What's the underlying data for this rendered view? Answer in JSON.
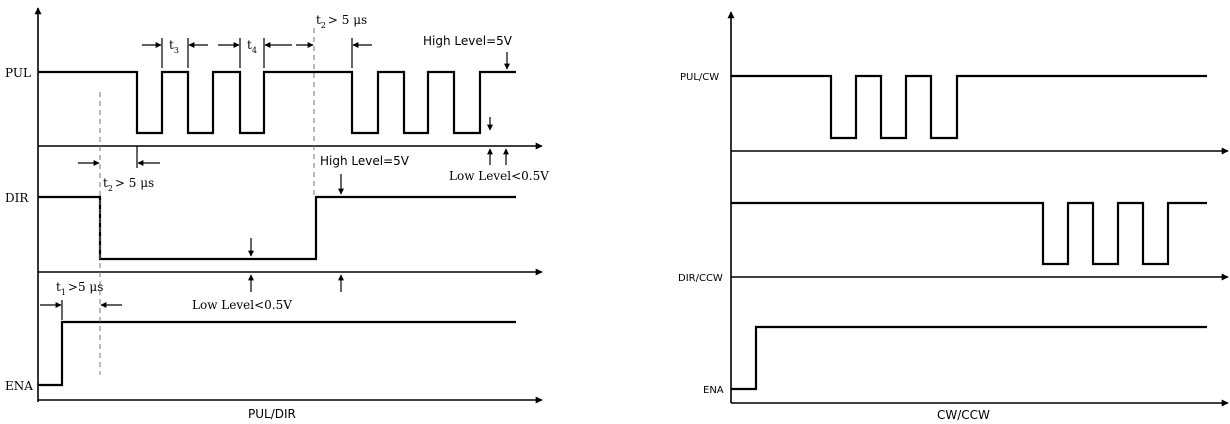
{
  "left": {
    "signals": {
      "pul": "PUL",
      "dir": "DIR",
      "ena": "ENA"
    },
    "caption": "PUL/DIR",
    "t3": {
      "t": "t",
      "sub": "3"
    },
    "t4": {
      "t": "t",
      "sub": "4"
    },
    "t2_top": {
      "t": "t",
      "sub": "2",
      "rest": "> 5 μs"
    },
    "t2_mid": {
      "t": "t",
      "sub": "2",
      "rest": "> 5 μs"
    },
    "t1": {
      "t": "t",
      "sub": "1",
      "rest": ">5 μs"
    },
    "high_level_top": "High Level=5V",
    "high_level_mid": "High Level=5V",
    "low_level_right": "Low Level<0.5V",
    "low_level_mid": "Low Level<0.5V"
  },
  "right": {
    "signals": {
      "pul_cw": "PUL/CW",
      "dir_ccw": "DIR/CCW",
      "ena": "ENA"
    },
    "caption": "CW/CCW"
  }
}
